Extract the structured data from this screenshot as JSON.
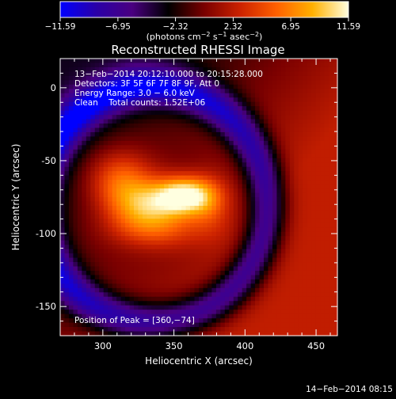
{
  "chart_data": {
    "type": "heatmap",
    "title": "Reconstructed RHESSI Image",
    "xlabel": "Heliocentric X (arcsec)",
    "ylabel": "Heliocentric Y (arcsec)",
    "xlim": [
      270,
      465
    ],
    "ylim": [
      -170,
      20
    ],
    "x_ticks": [
      300,
      350,
      400,
      450
    ],
    "y_ticks": [
      0,
      -50,
      -100,
      -150
    ],
    "colorbar": {
      "range": [
        -11.59,
        11.59
      ],
      "ticks": [
        "−11.59",
        "−6.95",
        "−2.32",
        "2.32",
        "6.95",
        "11.59"
      ],
      "unit_parts": [
        "(photons cm",
        "−2",
        " s",
        "−1",
        " asec",
        "−2",
        ")"
      ],
      "colors": [
        "#0000ff",
        "#2a00a8",
        "#4a0080",
        "#000000",
        "#7a0000",
        "#cc2200",
        "#ff6000",
        "#ffb000",
        "#ffffe0"
      ]
    },
    "annotations": [
      "13−Feb−2014 20:12:10.000 to 20:15:28.000",
      "Detectors: 3F 5F 6F 7F 8F 9F, Att 0",
      "Energy Range: 3.0 − 6.0 keV",
      "Clean    Total counts: 1.52E+06",
      "Position of Peak = [360,−74]"
    ],
    "peak": {
      "x": 360,
      "y": -74
    },
    "source_blobs": [
      {
        "x": 312,
        "y": -62,
        "sx": 16,
        "sy": 14,
        "amp": 5.5
      },
      {
        "x": 330,
        "y": -80,
        "sx": 18,
        "sy": 12,
        "amp": 7.5
      },
      {
        "x": 358,
        "y": -74,
        "sx": 14,
        "sy": 9,
        "amp": 11.0
      },
      {
        "x": 338,
        "y": -97,
        "sx": 24,
        "sy": 10,
        "amp": 4.0
      },
      {
        "x": 375,
        "y": -80,
        "sx": 10,
        "sy": 14,
        "amp": 3.0
      }
    ],
    "background": {
      "ring_center": {
        "x": 335,
        "y": -80
      },
      "ring_radius": 80,
      "ring_width": 14,
      "ring_depth": -9.5,
      "outer_levels": {
        "upper_left": -3.5,
        "right": 2.5
      }
    }
  },
  "timestamp": "14−Feb−2014 08:15"
}
